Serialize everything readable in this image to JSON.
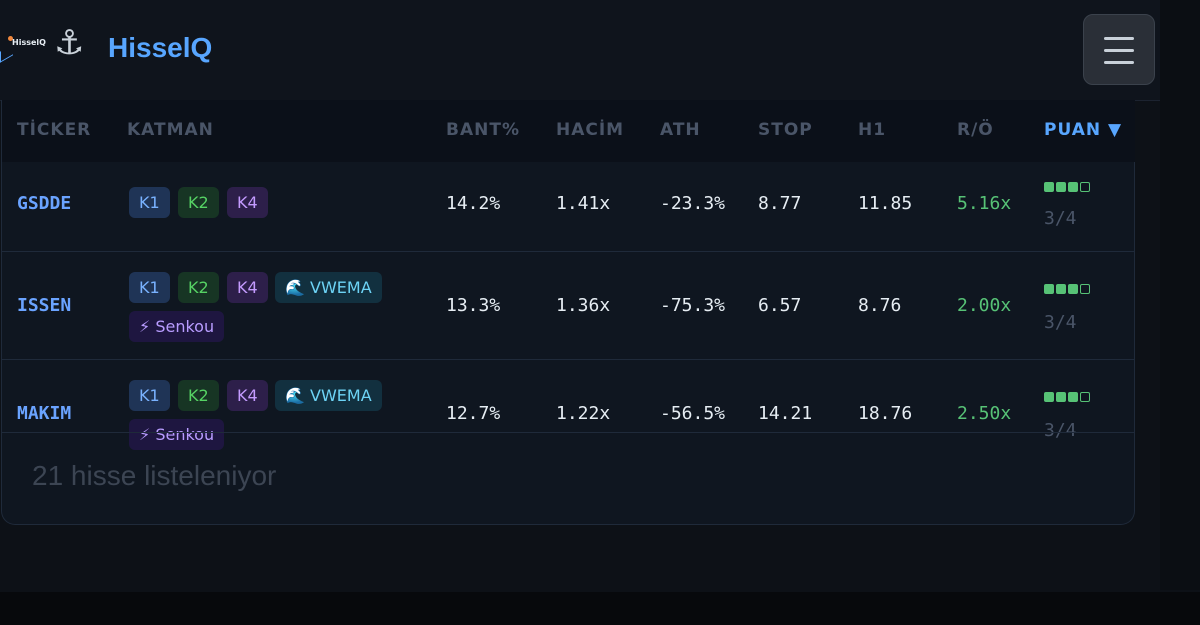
{
  "header": {
    "mini_logo_text": "HisselQ",
    "anchor_glyph": "⚓",
    "brand": "HisselQ",
    "menu_icon": "hamburger-menu-icon"
  },
  "table": {
    "columns": [
      "TİCKER",
      "KATMAN",
      "BANT%",
      "HACİM",
      "ATH",
      "STOP",
      "H1",
      "R/Ö",
      "PUAN ▼"
    ],
    "sorted_column": "PUAN",
    "rows": [
      {
        "ticker": "GSDDE",
        "badges": [
          "K1",
          "K2",
          "K4"
        ],
        "bant": "14.2%",
        "hacim": "1.41x",
        "ath": "-23.3%",
        "stop": "8.77",
        "h1": "11.85",
        "ro": "5.16x",
        "score": "3/4",
        "score_filled": 3,
        "score_total": 4
      },
      {
        "ticker": "ISSEN",
        "badges": [
          "K1",
          "K2",
          "K4",
          "🌊 VWEMA",
          "⚡ Senkou"
        ],
        "bant": "13.3%",
        "hacim": "1.36x",
        "ath": "-75.3%",
        "stop": "6.57",
        "h1": "8.76",
        "ro": "2.00x",
        "score": "3/4",
        "score_filled": 3,
        "score_total": 4
      },
      {
        "ticker": "MAKIM",
        "badges": [
          "K1",
          "K2",
          "K4",
          "🌊 VWEMA",
          "⚡ Senkou"
        ],
        "bant": "12.7%",
        "hacim": "1.22x",
        "ath": "-56.5%",
        "stop": "14.21",
        "h1": "18.76",
        "ro": "2.50x",
        "score": "3/4",
        "score_filled": 3,
        "score_total": 4
      }
    ]
  },
  "footer": {
    "count_text": "21 hisse listeleniyor"
  },
  "colors": {
    "accent": "#58a6ff",
    "positive": "#57c276",
    "background": "#0d1117"
  }
}
